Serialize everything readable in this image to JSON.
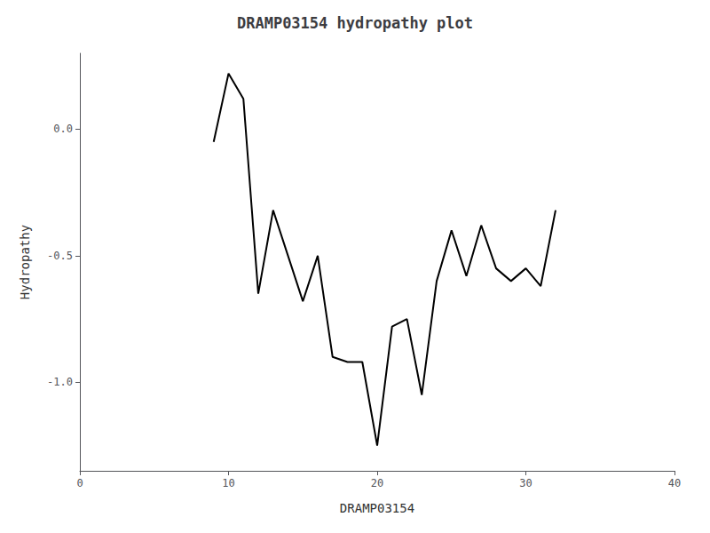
{
  "chart_data": {
    "type": "line",
    "title": "DRAMP03154 hydropathy plot",
    "xlabel": "DRAMP03154",
    "ylabel": "Hydropathy",
    "x": [
      9,
      10,
      11,
      12,
      13,
      14,
      15,
      16,
      17,
      18,
      19,
      20,
      21,
      22,
      23,
      24,
      25,
      26,
      27,
      28,
      29,
      30,
      31,
      32
    ],
    "values": [
      -0.05,
      0.22,
      0.12,
      -0.65,
      -0.32,
      -0.5,
      -0.68,
      -0.5,
      -0.9,
      -0.92,
      -0.92,
      -1.25,
      -0.78,
      -0.75,
      -1.05,
      -0.6,
      -0.4,
      -0.58,
      -0.38,
      -0.55,
      -0.6,
      -0.55,
      -0.62,
      -0.32
    ],
    "color": "#000000",
    "xlim": [
      0,
      40
    ],
    "ylim": [
      -1.35,
      0.3
    ],
    "xticks": [
      0,
      10,
      20,
      30,
      40
    ],
    "yticks": [
      {
        "value": 0.0,
        "label": "0.0"
      },
      -0.5,
      {
        "value": -1.0,
        "label": "-1.0"
      }
    ],
    "grid": false
  }
}
